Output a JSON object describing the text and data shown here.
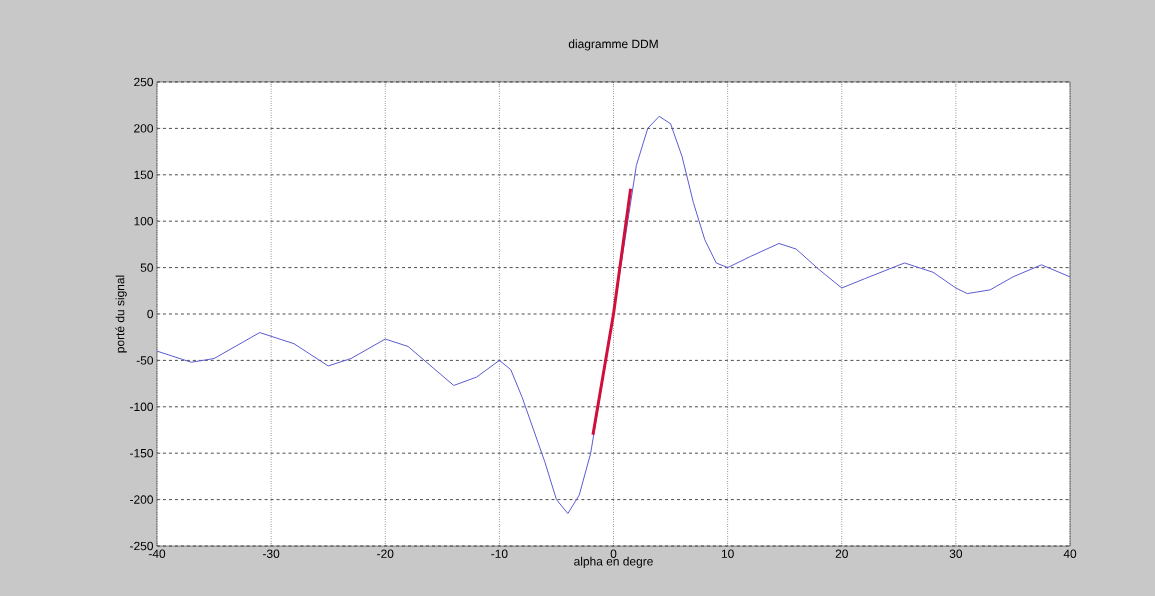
{
  "chart_data": {
    "type": "line",
    "title": "diagramme DDM",
    "xlabel": "alpha en degre",
    "ylabel": "porté du signal",
    "xlim": [
      -40,
      40
    ],
    "ylim": [
      -250,
      250
    ],
    "xticks": [
      -40,
      -30,
      -20,
      -10,
      0,
      10,
      20,
      30,
      40
    ],
    "yticks": [
      -250,
      -200,
      -150,
      -100,
      -50,
      0,
      50,
      100,
      150,
      200,
      250
    ],
    "grid": true,
    "marker": "none",
    "line_style": "solid",
    "series": [
      {
        "color": "#5b5bd0",
        "x": [
          -40,
          -37,
          -35,
          -31,
          -28,
          -25,
          -23,
          -20,
          -18,
          -14,
          -12,
          -10,
          -9,
          -8,
          -6,
          -5,
          -4,
          -3,
          -2,
          -1,
          0,
          1,
          2,
          3,
          4,
          5,
          6,
          7,
          8,
          9,
          10,
          12,
          14.5,
          16,
          18,
          20,
          22,
          25.5,
          28,
          30,
          31,
          33,
          35,
          37.5,
          40
        ],
        "values": [
          -40,
          -52,
          -48,
          -20,
          -32,
          -56,
          -48,
          -27,
          -35,
          -77,
          -68,
          -50,
          -60,
          -90,
          -160,
          -200,
          -215,
          -195,
          -150,
          null,
          0,
          null,
          160,
          200,
          213,
          205,
          170,
          120,
          80,
          55,
          50,
          62,
          76,
          70,
          48,
          28,
          38,
          55,
          45,
          28,
          22,
          26,
          40,
          53,
          40
        ]
      },
      {
        "color": "#d0103a",
        "x": [
          -1.8,
          0,
          1.5
        ],
        "values": [
          -130,
          0,
          135
        ]
      }
    ]
  }
}
